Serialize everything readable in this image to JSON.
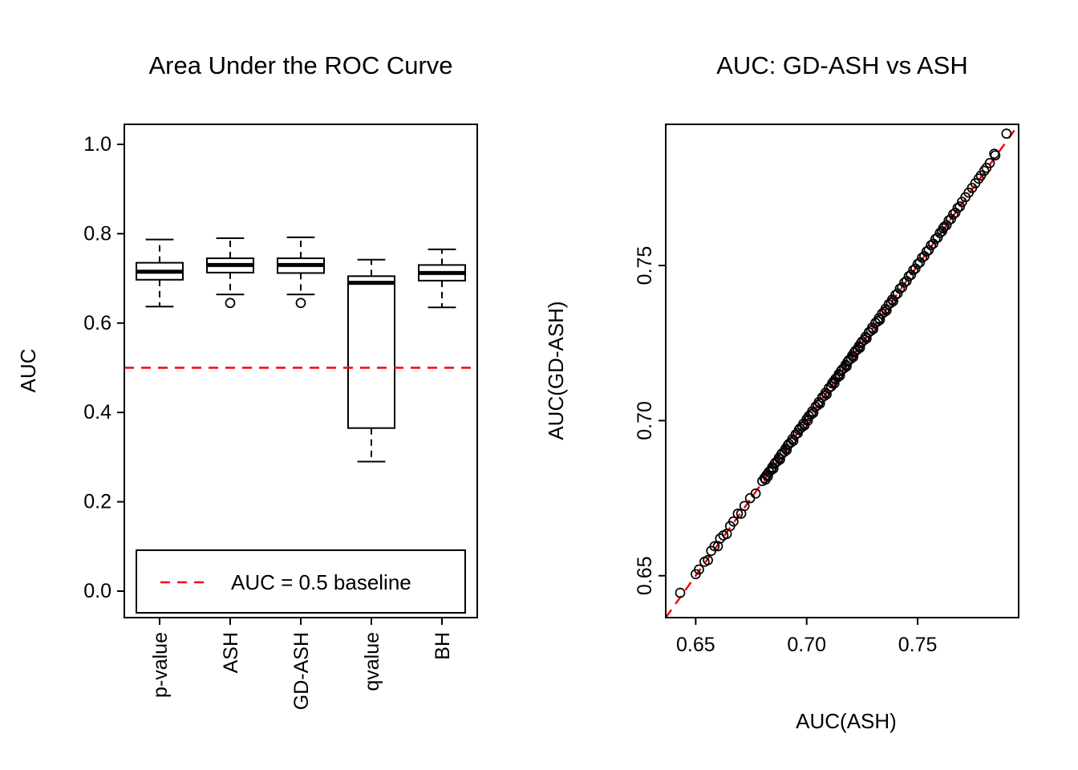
{
  "chart_data": [
    {
      "type": "boxplot",
      "title": "Area Under the ROC Curve",
      "ylabel": "AUC",
      "xlabel": "",
      "ylim": [
        0.0,
        1.0
      ],
      "yticks": [
        "0.0",
        "0.2",
        "0.4",
        "0.6",
        "0.8",
        "1.0"
      ],
      "categories": [
        "p-value",
        "ASH",
        "GD-ASH",
        "qvalue",
        "BH"
      ],
      "boxes": [
        {
          "low": 0.637,
          "q1": 0.697,
          "median": 0.715,
          "q3": 0.735,
          "high": 0.787,
          "outliers": []
        },
        {
          "low": 0.664,
          "q1": 0.713,
          "median": 0.73,
          "q3": 0.745,
          "high": 0.79,
          "outliers": [
            0.645
          ]
        },
        {
          "low": 0.664,
          "q1": 0.712,
          "median": 0.73,
          "q3": 0.745,
          "high": 0.792,
          "outliers": [
            0.645
          ]
        },
        {
          "low": 0.29,
          "q1": 0.365,
          "median": 0.69,
          "q3": 0.705,
          "high": 0.742,
          "outliers": []
        },
        {
          "low": 0.635,
          "q1": 0.695,
          "median": 0.712,
          "q3": 0.73,
          "high": 0.765,
          "outliers": []
        }
      ],
      "baseline": {
        "value": 0.5,
        "color": "#FF0000",
        "style": "dashed",
        "legend_label": "AUC = 0.5 baseline"
      },
      "legend_position": "bottom-inside",
      "grid": false
    },
    {
      "type": "scatter",
      "title": "AUC: GD-ASH vs ASH",
      "xlabel": "AUC(ASH)",
      "ylabel": "AUC(GD-ASH)",
      "xlim": [
        0.6365,
        0.7955
      ],
      "ylim": [
        0.6365,
        0.7955
      ],
      "xticks": [
        "0.65",
        "0.70",
        "0.75"
      ],
      "yticks": [
        "0.65",
        "0.70",
        "0.75"
      ],
      "identity_line": {
        "color": "#FF0000",
        "style": "dashed",
        "slope": 1,
        "intercept": 0
      },
      "marker": "open-circle",
      "grid": false,
      "points": [
        [
          0.643,
          0.6445
        ],
        [
          0.65,
          0.6505
        ],
        [
          0.6515,
          0.652
        ],
        [
          0.654,
          0.6545
        ],
        [
          0.6555,
          0.655
        ],
        [
          0.657,
          0.658
        ],
        [
          0.6585,
          0.6595
        ],
        [
          0.66,
          0.6595
        ],
        [
          0.661,
          0.662
        ],
        [
          0.6625,
          0.663
        ],
        [
          0.664,
          0.6635
        ],
        [
          0.6655,
          0.666
        ],
        [
          0.667,
          0.6675
        ],
        [
          0.669,
          0.67
        ],
        [
          0.6705,
          0.67
        ],
        [
          0.672,
          0.6725
        ],
        [
          0.6745,
          0.675
        ],
        [
          0.677,
          0.6765
        ],
        [
          0.68,
          0.6805
        ],
        [
          0.681,
          0.6815
        ],
        [
          0.6815,
          0.681
        ],
        [
          0.682,
          0.6825
        ],
        [
          0.6825,
          0.682
        ],
        [
          0.683,
          0.6835
        ],
        [
          0.684,
          0.684
        ],
        [
          0.6845,
          0.685
        ],
        [
          0.685,
          0.6845
        ],
        [
          0.6855,
          0.686
        ],
        [
          0.686,
          0.6865
        ],
        [
          0.687,
          0.687
        ],
        [
          0.6875,
          0.688
        ],
        [
          0.688,
          0.6875
        ],
        [
          0.6885,
          0.689
        ],
        [
          0.689,
          0.6895
        ],
        [
          0.69,
          0.69
        ],
        [
          0.6905,
          0.691
        ],
        [
          0.691,
          0.6905
        ],
        [
          0.6915,
          0.692
        ],
        [
          0.692,
          0.6925
        ],
        [
          0.693,
          0.693
        ],
        [
          0.6935,
          0.694
        ],
        [
          0.694,
          0.6935
        ],
        [
          0.695,
          0.6955
        ],
        [
          0.696,
          0.696
        ],
        [
          0.6965,
          0.697
        ],
        [
          0.697,
          0.6975
        ],
        [
          0.698,
          0.698
        ],
        [
          0.6985,
          0.699
        ],
        [
          0.699,
          0.6985
        ],
        [
          0.7,
          0.7005
        ],
        [
          0.7005,
          0.7
        ],
        [
          0.701,
          0.7015
        ],
        [
          0.702,
          0.702
        ],
        [
          0.7025,
          0.703
        ],
        [
          0.703,
          0.7025
        ],
        [
          0.704,
          0.7045
        ],
        [
          0.705,
          0.705
        ],
        [
          0.7055,
          0.706
        ],
        [
          0.706,
          0.7055
        ],
        [
          0.707,
          0.7075
        ],
        [
          0.708,
          0.708
        ],
        [
          0.7085,
          0.709
        ],
        [
          0.709,
          0.7085
        ],
        [
          0.71,
          0.7105
        ],
        [
          0.711,
          0.711
        ],
        [
          0.7115,
          0.712
        ],
        [
          0.712,
          0.7125
        ],
        [
          0.7125,
          0.712
        ],
        [
          0.713,
          0.7135
        ],
        [
          0.714,
          0.714
        ],
        [
          0.7145,
          0.715
        ],
        [
          0.715,
          0.7145
        ],
        [
          0.7155,
          0.716
        ],
        [
          0.716,
          0.7165
        ],
        [
          0.717,
          0.717
        ],
        [
          0.7175,
          0.718
        ],
        [
          0.718,
          0.7175
        ],
        [
          0.7185,
          0.719
        ],
        [
          0.719,
          0.7195
        ],
        [
          0.72,
          0.72
        ],
        [
          0.7205,
          0.721
        ],
        [
          0.721,
          0.7205
        ],
        [
          0.7215,
          0.722
        ],
        [
          0.722,
          0.7225
        ],
        [
          0.723,
          0.723
        ],
        [
          0.7235,
          0.724
        ],
        [
          0.724,
          0.7235
        ],
        [
          0.7245,
          0.725
        ],
        [
          0.725,
          0.7255
        ],
        [
          0.726,
          0.726
        ],
        [
          0.7265,
          0.727
        ],
        [
          0.727,
          0.7265
        ],
        [
          0.728,
          0.7285
        ],
        [
          0.729,
          0.729
        ],
        [
          0.7295,
          0.73
        ],
        [
          0.73,
          0.7295
        ],
        [
          0.731,
          0.7315
        ],
        [
          0.732,
          0.732
        ],
        [
          0.7325,
          0.733
        ],
        [
          0.733,
          0.7325
        ],
        [
          0.734,
          0.7345
        ],
        [
          0.735,
          0.735
        ],
        [
          0.7355,
          0.736
        ],
        [
          0.736,
          0.7355
        ],
        [
          0.737,
          0.7375
        ],
        [
          0.738,
          0.738
        ],
        [
          0.7385,
          0.739
        ],
        [
          0.739,
          0.7385
        ],
        [
          0.74,
          0.7405
        ],
        [
          0.741,
          0.741
        ],
        [
          0.742,
          0.7425
        ],
        [
          0.743,
          0.743
        ],
        [
          0.744,
          0.7445
        ],
        [
          0.745,
          0.745
        ],
        [
          0.746,
          0.7465
        ],
        [
          0.747,
          0.747
        ],
        [
          0.748,
          0.7485
        ],
        [
          0.749,
          0.749
        ],
        [
          0.75,
          0.7505
        ],
        [
          0.751,
          0.751
        ],
        [
          0.752,
          0.7525
        ],
        [
          0.753,
          0.753
        ],
        [
          0.754,
          0.7545
        ],
        [
          0.755,
          0.755
        ],
        [
          0.756,
          0.7565
        ],
        [
          0.757,
          0.757
        ],
        [
          0.758,
          0.7585
        ],
        [
          0.759,
          0.759
        ],
        [
          0.76,
          0.7605
        ],
        [
          0.761,
          0.761
        ],
        [
          0.7615,
          0.762
        ],
        [
          0.762,
          0.7625
        ],
        [
          0.763,
          0.763
        ],
        [
          0.764,
          0.7645
        ],
        [
          0.765,
          0.765
        ],
        [
          0.766,
          0.7665
        ],
        [
          0.767,
          0.767
        ],
        [
          0.768,
          0.7685
        ],
        [
          0.769,
          0.769
        ],
        [
          0.77,
          0.7705
        ],
        [
          0.7715,
          0.772
        ],
        [
          0.773,
          0.7735
        ],
        [
          0.7745,
          0.775
        ],
        [
          0.776,
          0.7765
        ],
        [
          0.7775,
          0.778
        ],
        [
          0.7785,
          0.779
        ],
        [
          0.78,
          0.7805
        ],
        [
          0.781,
          0.7815
        ],
        [
          0.7825,
          0.783
        ],
        [
          0.7845,
          0.786
        ],
        [
          0.785,
          0.7855
        ],
        [
          0.79,
          0.7925
        ]
      ]
    }
  ]
}
